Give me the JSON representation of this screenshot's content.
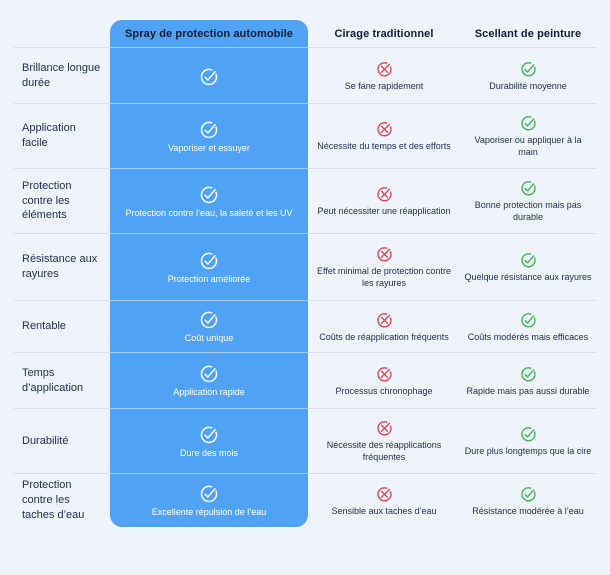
{
  "colors": {
    "accent_blue": "#4FA2F4",
    "positive_green": "#3CB54C",
    "negative_red": "#E4414C",
    "check_on_blue": "#FFFFFF"
  },
  "table": {
    "columns": [
      {
        "key": "spray",
        "label": "Spray de protection automobile",
        "highlight": true
      },
      {
        "key": "wax",
        "label": "Cirage traditionnel",
        "highlight": false
      },
      {
        "key": "sealant",
        "label": "Scellant de peinture",
        "highlight": false
      }
    ],
    "rows": [
      {
        "label": "Brillance longue durée",
        "spray": {
          "icon": "check-icon",
          "caption": ""
        },
        "wax": {
          "icon": "x-icon",
          "caption": "Se fane rapidement"
        },
        "sealant": {
          "icon": "check-icon",
          "caption": "Durabilité moyenne"
        }
      },
      {
        "label": "Application facile",
        "spray": {
          "icon": "check-icon",
          "caption": "Vaporiser et essuyer"
        },
        "wax": {
          "icon": "x-icon",
          "caption": "Nécessite du temps et des efforts"
        },
        "sealant": {
          "icon": "check-icon",
          "caption": "Vaporiser ou appliquer à la main"
        }
      },
      {
        "label": "Protection contre les éléments",
        "spray": {
          "icon": "check-icon",
          "caption": "Protection contre l’eau, la saleté et les UV"
        },
        "wax": {
          "icon": "x-icon",
          "caption": "Peut nécessiter une réapplication"
        },
        "sealant": {
          "icon": "check-icon",
          "caption": "Bonne protection mais pas durable"
        }
      },
      {
        "label": "Résistance aux rayures",
        "spray": {
          "icon": "check-icon",
          "caption": "Protection améliorée"
        },
        "wax": {
          "icon": "x-icon",
          "caption": "Effet minimal de protection contre les rayures"
        },
        "sealant": {
          "icon": "check-icon",
          "caption": "Quelque résistance aux rayures"
        }
      },
      {
        "label": "Rentable",
        "spray": {
          "icon": "check-icon",
          "caption": "Coût unique"
        },
        "wax": {
          "icon": "x-icon",
          "caption": "Coûts de réapplication fréquents"
        },
        "sealant": {
          "icon": "check-icon",
          "caption": "Coûts modérés mais efficaces"
        }
      },
      {
        "label": "Temps d’application",
        "spray": {
          "icon": "check-icon",
          "caption": "Application rapide"
        },
        "wax": {
          "icon": "x-icon",
          "caption": "Processus chronophage"
        },
        "sealant": {
          "icon": "check-icon",
          "caption": "Rapide mais pas aussi durable"
        }
      },
      {
        "label": "Durabilité",
        "spray": {
          "icon": "check-icon",
          "caption": "Dure des mois"
        },
        "wax": {
          "icon": "x-icon",
          "caption": "Nécessite des réapplications fréquentes"
        },
        "sealant": {
          "icon": "check-icon",
          "caption": "Dure plus longtemps que la cire"
        }
      },
      {
        "label": "Protection contre les taches d’eau",
        "spray": {
          "icon": "check-icon",
          "caption": "Excellente répulsion de l’eau"
        },
        "wax": {
          "icon": "x-icon",
          "caption": "Sensible aux taches d’eau"
        },
        "sealant": {
          "icon": "check-icon",
          "caption": "Résistance modérée à l’eau"
        }
      }
    ]
  }
}
